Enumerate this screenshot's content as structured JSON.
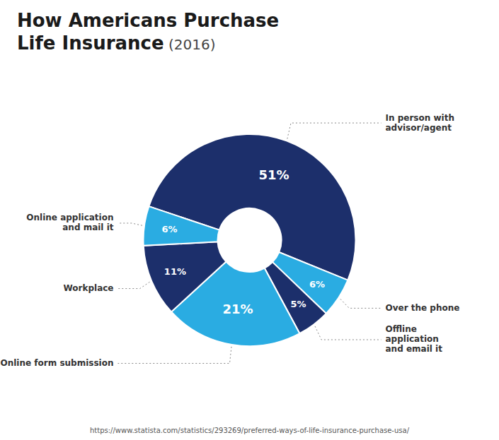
{
  "chart_data": {
    "type": "pie",
    "title": "How Americans Purchase\nLife Insurance",
    "subtitle": " (2016)",
    "source": "https://www.statista.com/statistics/293269/preferred-ways-of-life-insurance-purchase-usa/",
    "categories": [
      "In person with\nadvisor/agent",
      "Over the phone",
      "Offline\napplication\nand email it",
      "Online form submission",
      "Workplace",
      "Online application\nand mail it"
    ],
    "values": [
      51,
      6,
      5,
      21,
      11,
      6
    ],
    "value_labels": [
      "51%",
      "6%",
      "5%",
      "21%",
      "11%",
      "6%"
    ],
    "colors": [
      "#1c2f6b",
      "#2aace2",
      "#1c2f6b",
      "#2aace2",
      "#1c2f6b",
      "#2aace2"
    ],
    "data_labels": true
  }
}
